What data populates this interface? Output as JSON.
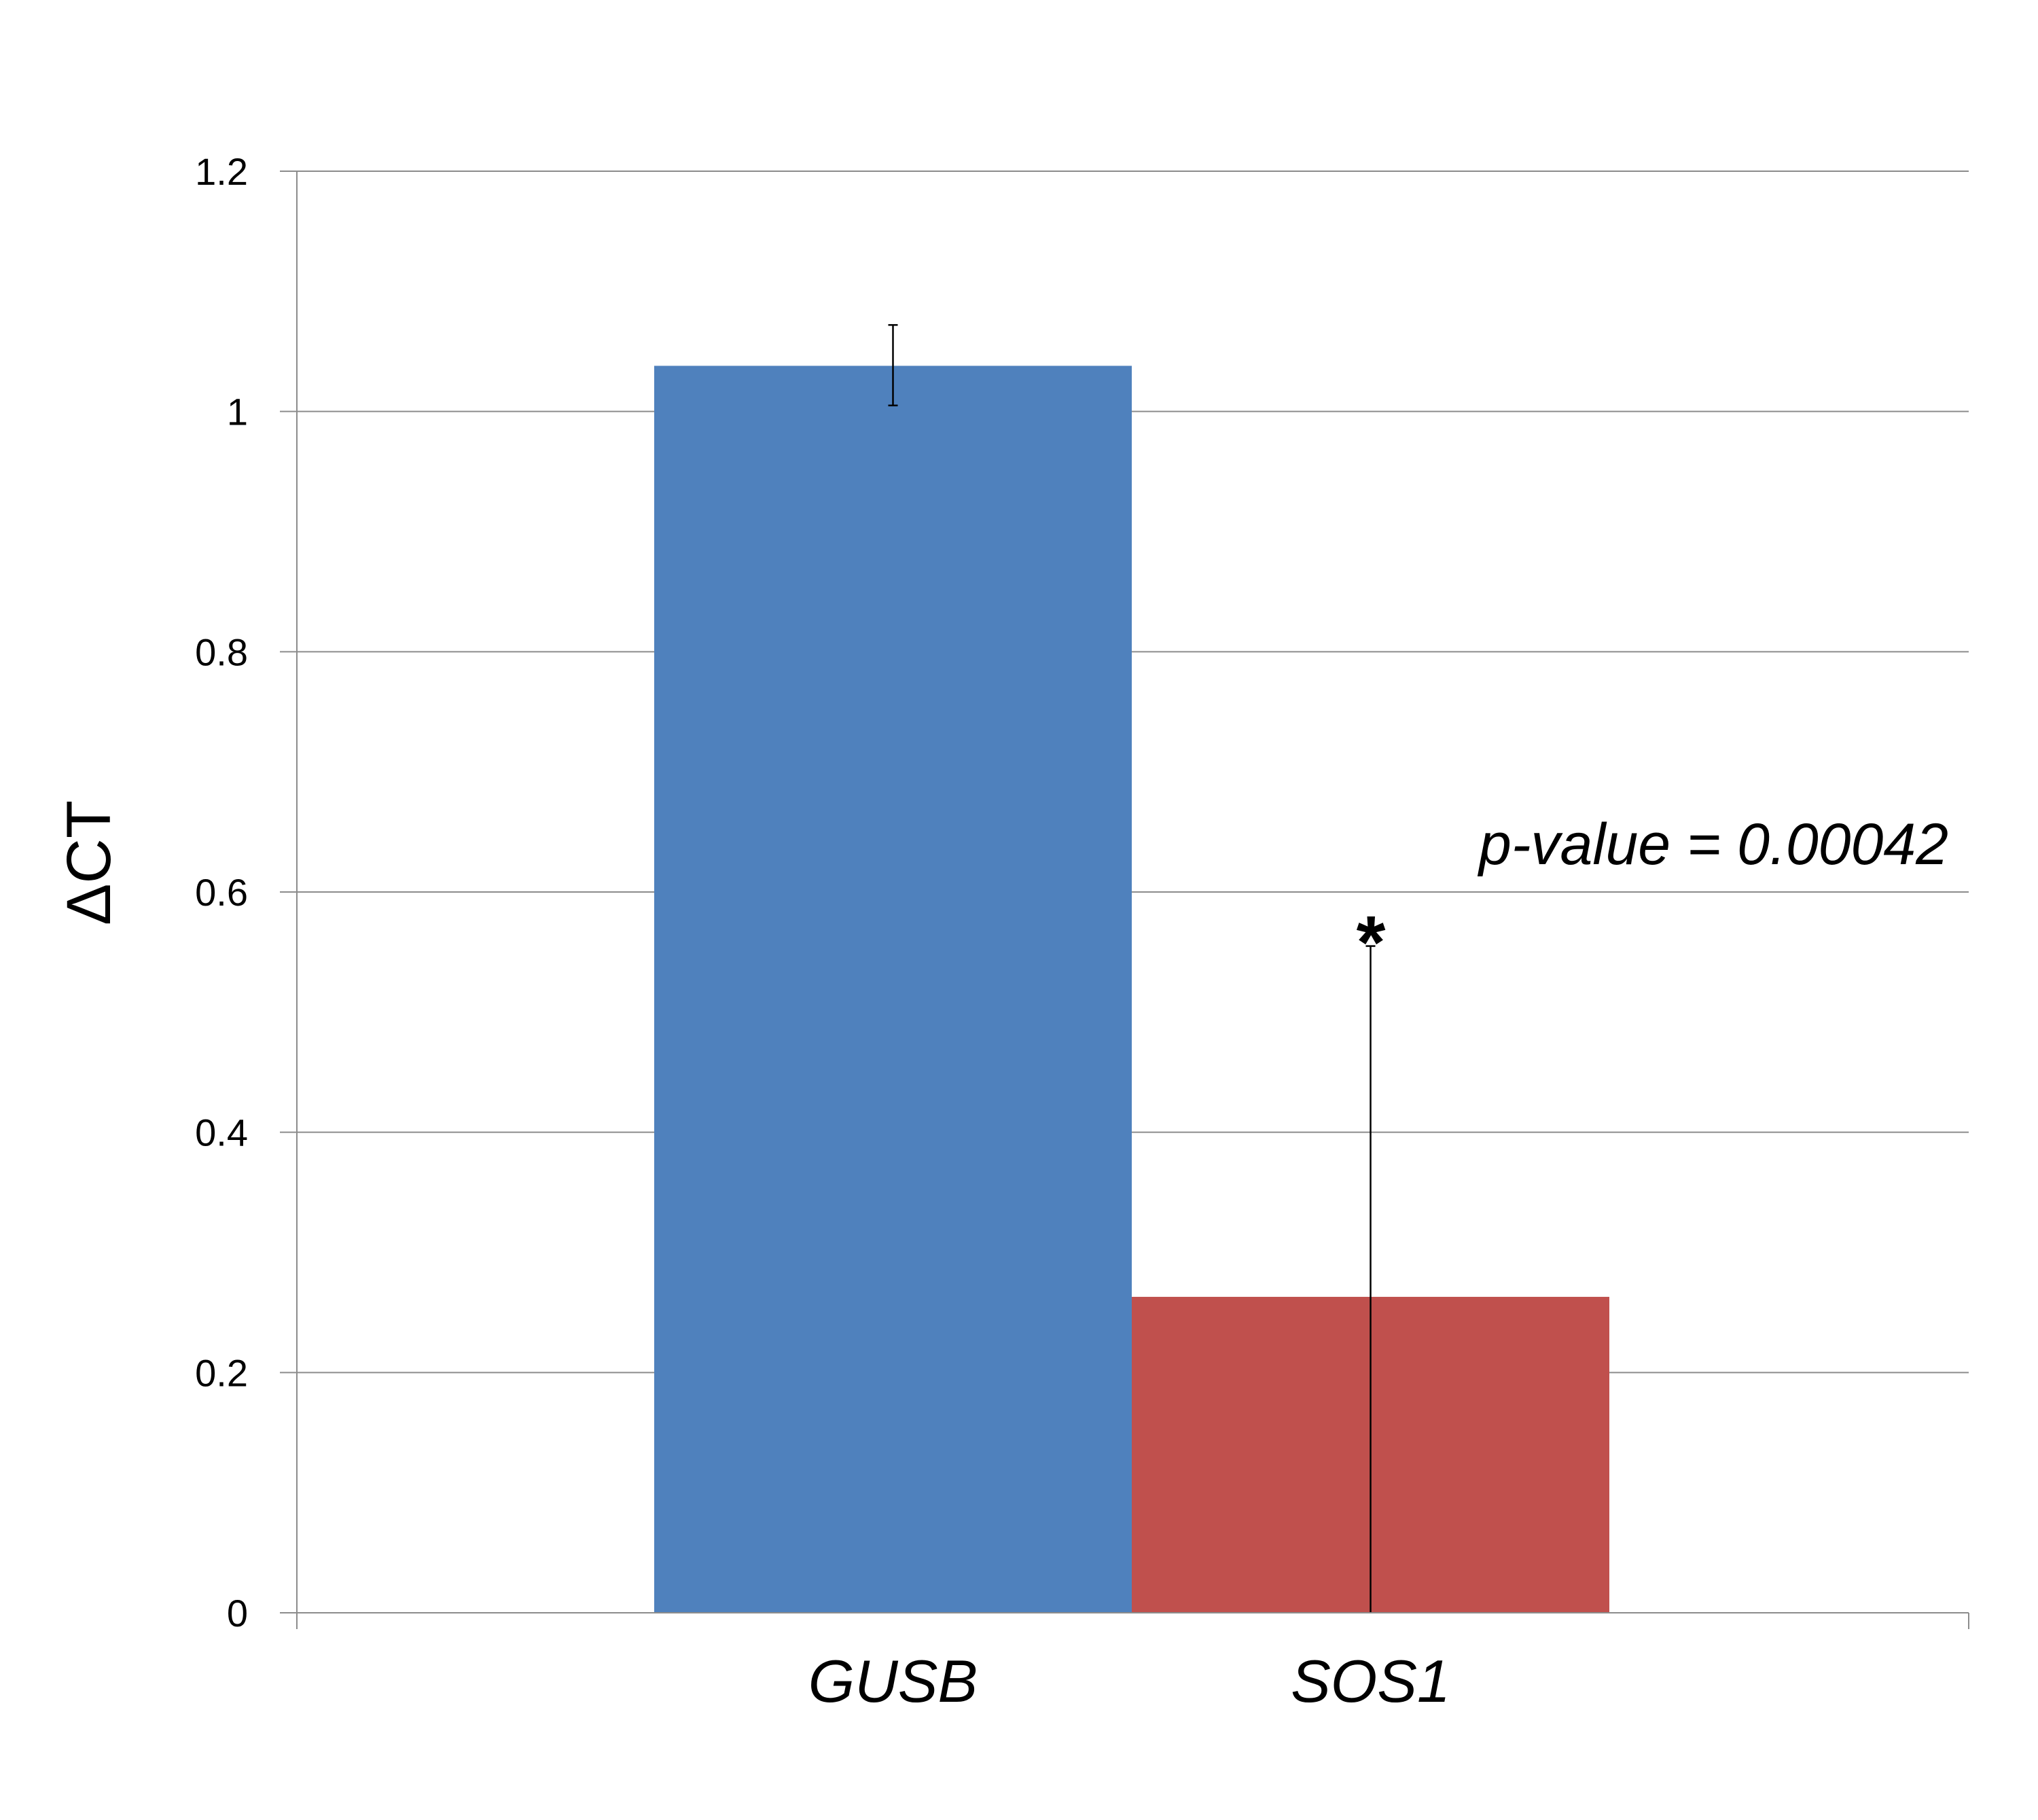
{
  "chart_data": {
    "type": "bar",
    "categories": [
      "GUSB",
      "SOS1"
    ],
    "values": [
      1.038,
      0.263
    ],
    "error_upper": [
      1.072,
      0.555
    ],
    "error_lower": [
      1.005,
      0.0
    ],
    "colors": [
      "#4f81bd",
      "#c0504d"
    ],
    "xlabel": "",
    "ylabel": "ΔCT",
    "ylim": [
      0,
      1.2
    ],
    "yticks": [
      0,
      0.2,
      0.4,
      0.6,
      0.8,
      1,
      1.2
    ],
    "ytick_labels": [
      "0",
      "0.2",
      "0.4",
      "0.6",
      "0.8",
      "1",
      "1.2"
    ],
    "grid": true,
    "annotations": {
      "significance_mark": "*",
      "p_value_text": "p-value = 0.00042"
    }
  }
}
